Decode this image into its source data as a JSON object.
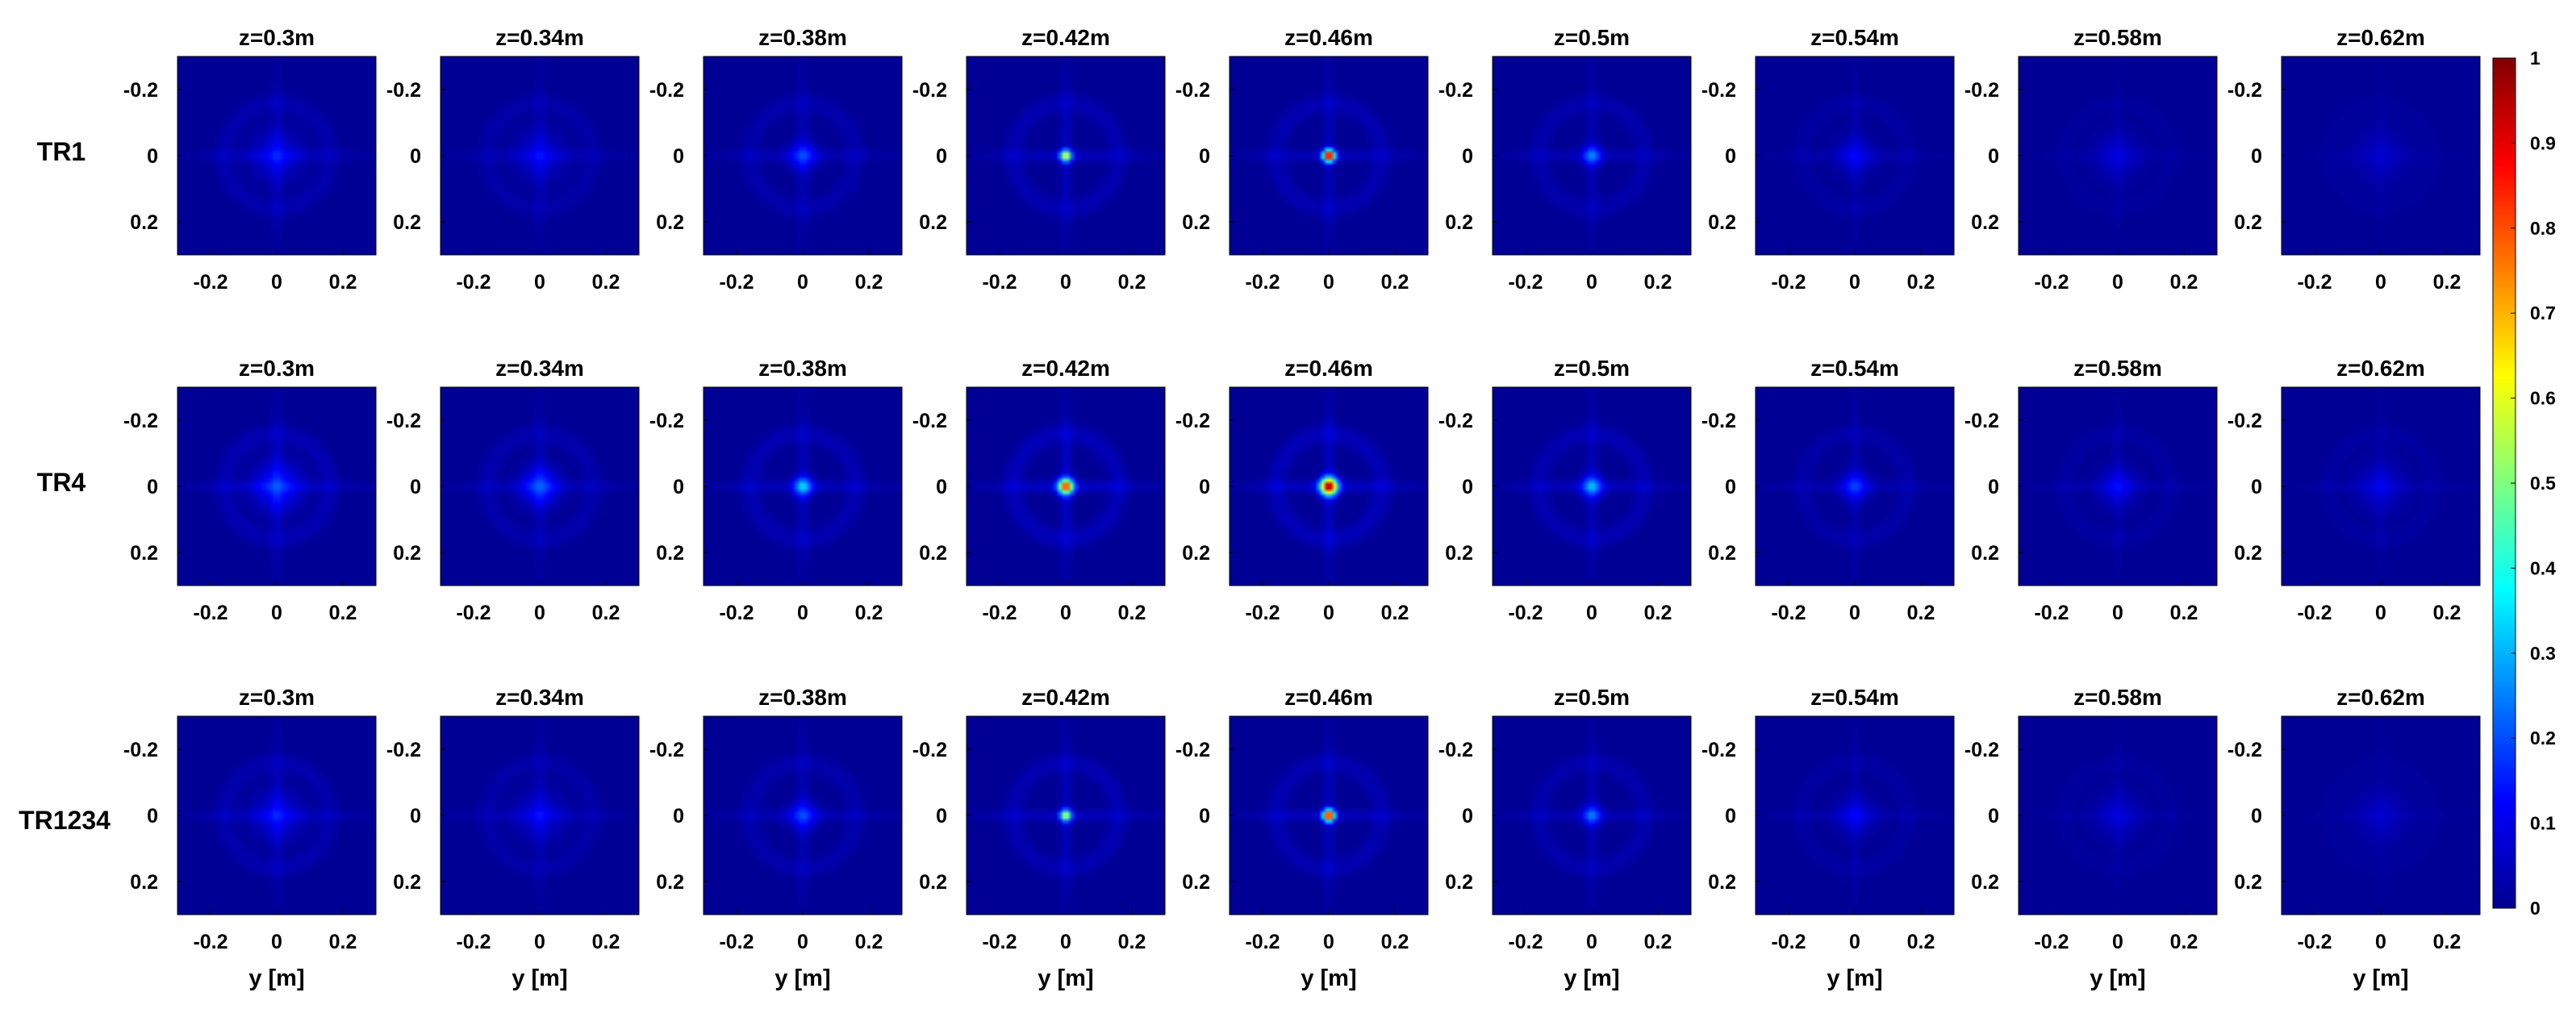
{
  "chart_data": {
    "type": "heatmap",
    "layout": "3x9 grid of normalized intensity maps",
    "rows": [
      "TR1",
      "TR4",
      "TR1234"
    ],
    "columns": [
      "z=0.3m",
      "z=0.34m",
      "z=0.38m",
      "z=0.42m",
      "z=0.46m",
      "z=0.5m",
      "z=0.54m",
      "z=0.58m",
      "z=0.62m"
    ],
    "x_axis": {
      "label": "y [m]",
      "range": [
        -0.3,
        0.3
      ],
      "ticks": [
        -0.2,
        0,
        0.2
      ],
      "tick_labels": [
        "-0.2",
        "0",
        "0.2"
      ]
    },
    "y_axis": {
      "label": "",
      "range": [
        -0.3,
        0.3
      ],
      "reversed": true,
      "ticks": [
        -0.2,
        0,
        0.2
      ],
      "tick_labels": [
        "-0.2",
        "0",
        "0.2"
      ]
    },
    "colorbar": {
      "colormap": "jet",
      "range": [
        0,
        1
      ],
      "ticks": [
        0,
        0.1,
        0.2,
        0.3,
        0.4,
        0.5,
        0.6,
        0.7,
        0.8,
        0.9,
        1
      ],
      "tick_labels": [
        "0",
        "0.1",
        "0.2",
        "0.3",
        "0.4",
        "0.5",
        "0.6",
        "0.7",
        "0.8",
        "0.9",
        "1"
      ],
      "position": "right"
    },
    "background_value": 0.02,
    "peak_values": [
      [
        0.08,
        0.07,
        0.12,
        0.55,
        0.95,
        0.18,
        0.07,
        0.05,
        0.04
      ],
      [
        0.12,
        0.14,
        0.25,
        0.75,
        0.9,
        0.22,
        0.12,
        0.08,
        0.06
      ],
      [
        0.08,
        0.07,
        0.12,
        0.5,
        0.88,
        0.17,
        0.07,
        0.05,
        0.04
      ]
    ],
    "peak_width_m": [
      [
        0.05,
        0.05,
        0.03,
        0.012,
        0.012,
        0.02,
        0.04,
        0.05,
        0.06
      ],
      [
        0.05,
        0.04,
        0.02,
        0.016,
        0.018,
        0.022,
        0.03,
        0.04,
        0.05
      ],
      [
        0.05,
        0.05,
        0.03,
        0.012,
        0.012,
        0.02,
        0.04,
        0.05,
        0.06
      ]
    ],
    "side_lobe_values": [
      [
        0.1,
        0.08,
        0.1,
        0.12,
        0.12,
        0.1,
        0.06,
        0.04,
        0.03
      ],
      [
        0.12,
        0.1,
        0.12,
        0.15,
        0.15,
        0.12,
        0.08,
        0.06,
        0.05
      ],
      [
        0.1,
        0.08,
        0.1,
        0.12,
        0.12,
        0.1,
        0.06,
        0.04,
        0.03
      ]
    ]
  }
}
